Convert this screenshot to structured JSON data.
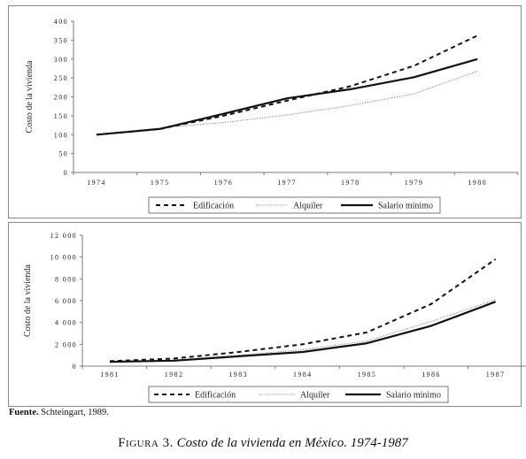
{
  "colors": {
    "series": "#111111",
    "alquiler": "#888888",
    "axis": "#7a7a7a"
  },
  "chart_data": [
    {
      "type": "line",
      "title": "",
      "xlabel": "",
      "ylabel": "Costo de la vivienda",
      "ylim": [
        0,
        400
      ],
      "yticks": [
        "0",
        "50",
        "100",
        "150",
        "200",
        "250",
        "300",
        "350",
        "400"
      ],
      "categories": [
        "1974",
        "1975",
        "1976",
        "1977",
        "1978",
        "1979",
        "1980"
      ],
      "grid": false,
      "legend_position": "bottom",
      "series": [
        {
          "name": "Edificación",
          "style": "dashed",
          "values": [
            100,
            115,
            150,
            190,
            228,
            282,
            362
          ]
        },
        {
          "name": "Alquiler",
          "style": "dotted",
          "values": [
            100,
            118,
            132,
            152,
            177,
            208,
            268
          ]
        },
        {
          "name": "Salario mínimo",
          "style": "solid",
          "values": [
            100,
            115,
            155,
            196,
            220,
            252,
            300
          ]
        }
      ]
    },
    {
      "type": "line",
      "title": "",
      "xlabel": "",
      "ylabel": "Costo de la vivienda",
      "ylim": [
        0,
        12000
      ],
      "yticks": [
        "0",
        "2 000",
        "4 000",
        "6 000",
        "8 000",
        "10 000",
        "12 000"
      ],
      "categories": [
        "1981",
        "1982",
        "1983",
        "1984",
        "1985",
        "1986",
        "1987"
      ],
      "grid": false,
      "legend_position": "bottom",
      "series": [
        {
          "name": "Edificación",
          "style": "dashed",
          "values": [
            450,
            700,
            1300,
            2000,
            3100,
            5700,
            9800
          ]
        },
        {
          "name": "Alquiler",
          "style": "dotted",
          "values": [
            420,
            550,
            1000,
            1500,
            2300,
            4100,
            6100
          ]
        },
        {
          "name": "Salario mínimo",
          "style": "solid",
          "values": [
            400,
            500,
            900,
            1300,
            2100,
            3700,
            5900
          ]
        }
      ]
    }
  ],
  "source": {
    "label": "Fuente.",
    "text": "Schteingart, 1989."
  },
  "caption": {
    "figure": "Figura 3.",
    "title": "Costo de la vivienda en México. 1974-1987"
  }
}
